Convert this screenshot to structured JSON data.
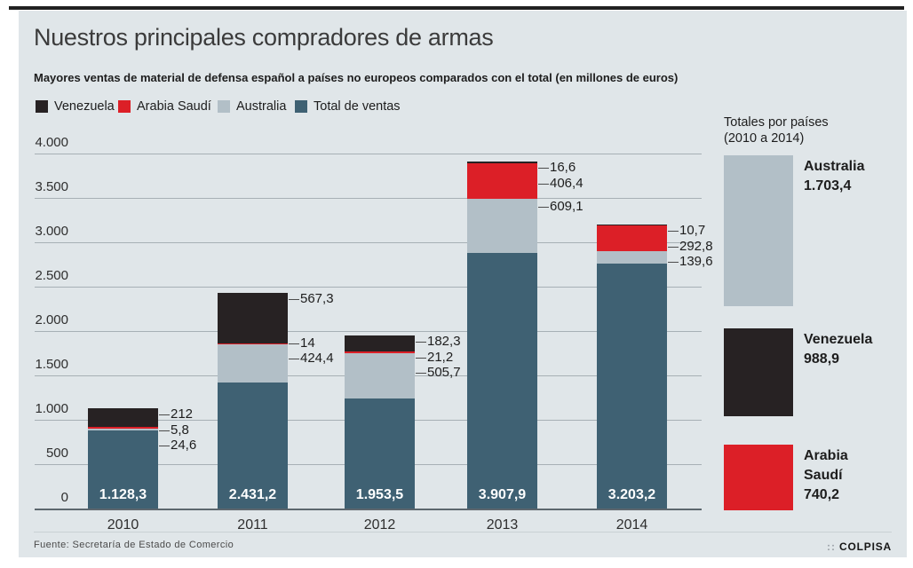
{
  "page": {
    "title": "Nuestros principales compradores de armas",
    "subtitle": "Mayores ventas de material de defensa español a países no europeos comparados con el total (en millones de euros)"
  },
  "legend": {
    "items": [
      {
        "label": "Venezuela",
        "color": "#272223"
      },
      {
        "label": "Arabia Saudí",
        "color": "#dc1f27"
      },
      {
        "label": "Australia",
        "color": "#b2bfc7"
      },
      {
        "label": "Total de ventas",
        "color": "#3f6173"
      }
    ]
  },
  "chart_data": {
    "type": "bar",
    "stacked": true,
    "title": "Nuestros principales compradores de armas",
    "subtitle": "Mayores ventas de material de defensa español a países no europeos comparados con el total (en millones de euros)",
    "unit": "millones de euros",
    "categories": [
      "2010",
      "2011",
      "2012",
      "2013",
      "2014"
    ],
    "series": [
      {
        "name": "Total de ventas",
        "color": "#3f6173",
        "values": [
          1128.3,
          2431.2,
          1953.5,
          3907.9,
          3203.2
        ],
        "labels": [
          "1.128,3",
          "2.431,2",
          "1.953,5",
          "3.907,9",
          "3.203,2"
        ]
      },
      {
        "name": "Australia",
        "color": "#b2bfc7",
        "values": [
          24.6,
          424.4,
          505.7,
          609.1,
          139.6
        ],
        "labels": [
          "24,6",
          "424,4",
          "505,7",
          "609,1",
          "139,6"
        ]
      },
      {
        "name": "Arabia Saudí",
        "color": "#dc1f27",
        "values": [
          5.8,
          14,
          21.2,
          406.4,
          292.8
        ],
        "labels": [
          "5,8",
          "14",
          "21,2",
          "406,4",
          "292,8"
        ]
      },
      {
        "name": "Venezuela",
        "color": "#272223",
        "values": [
          212,
          567.3,
          182.3,
          16.6,
          10.7
        ],
        "labels": [
          "212",
          "567,3",
          "182,3",
          "16,6",
          "10,7"
        ]
      }
    ],
    "ylim": [
      0,
      4000
    ],
    "ytick_interval": 500,
    "ytick_labels": [
      "0",
      "500",
      "1.000",
      "1.500",
      "2.000",
      "2.500",
      "3.000",
      "3.500",
      "4.000"
    ],
    "grid": true,
    "legend_position": "top"
  },
  "totals_panel": {
    "title": "Totales por países",
    "subtitle": "(2010 a 2014)",
    "items": [
      {
        "name_lines": [
          "Australia"
        ],
        "value": 1703.4,
        "value_label": "1.703,4",
        "color": "#b2bfc7"
      },
      {
        "name_lines": [
          "Venezuela"
        ],
        "value": 988.9,
        "value_label": "988,9",
        "color": "#272223"
      },
      {
        "name_lines": [
          "Arabia",
          "Saudí"
        ],
        "value": 740.2,
        "value_label": "740,2",
        "color": "#dc1f27"
      }
    ]
  },
  "footer": {
    "source": "Fuente: Secretaría de Estado de Comercio",
    "brand_prefix": "::",
    "brand": "COLPISA"
  }
}
